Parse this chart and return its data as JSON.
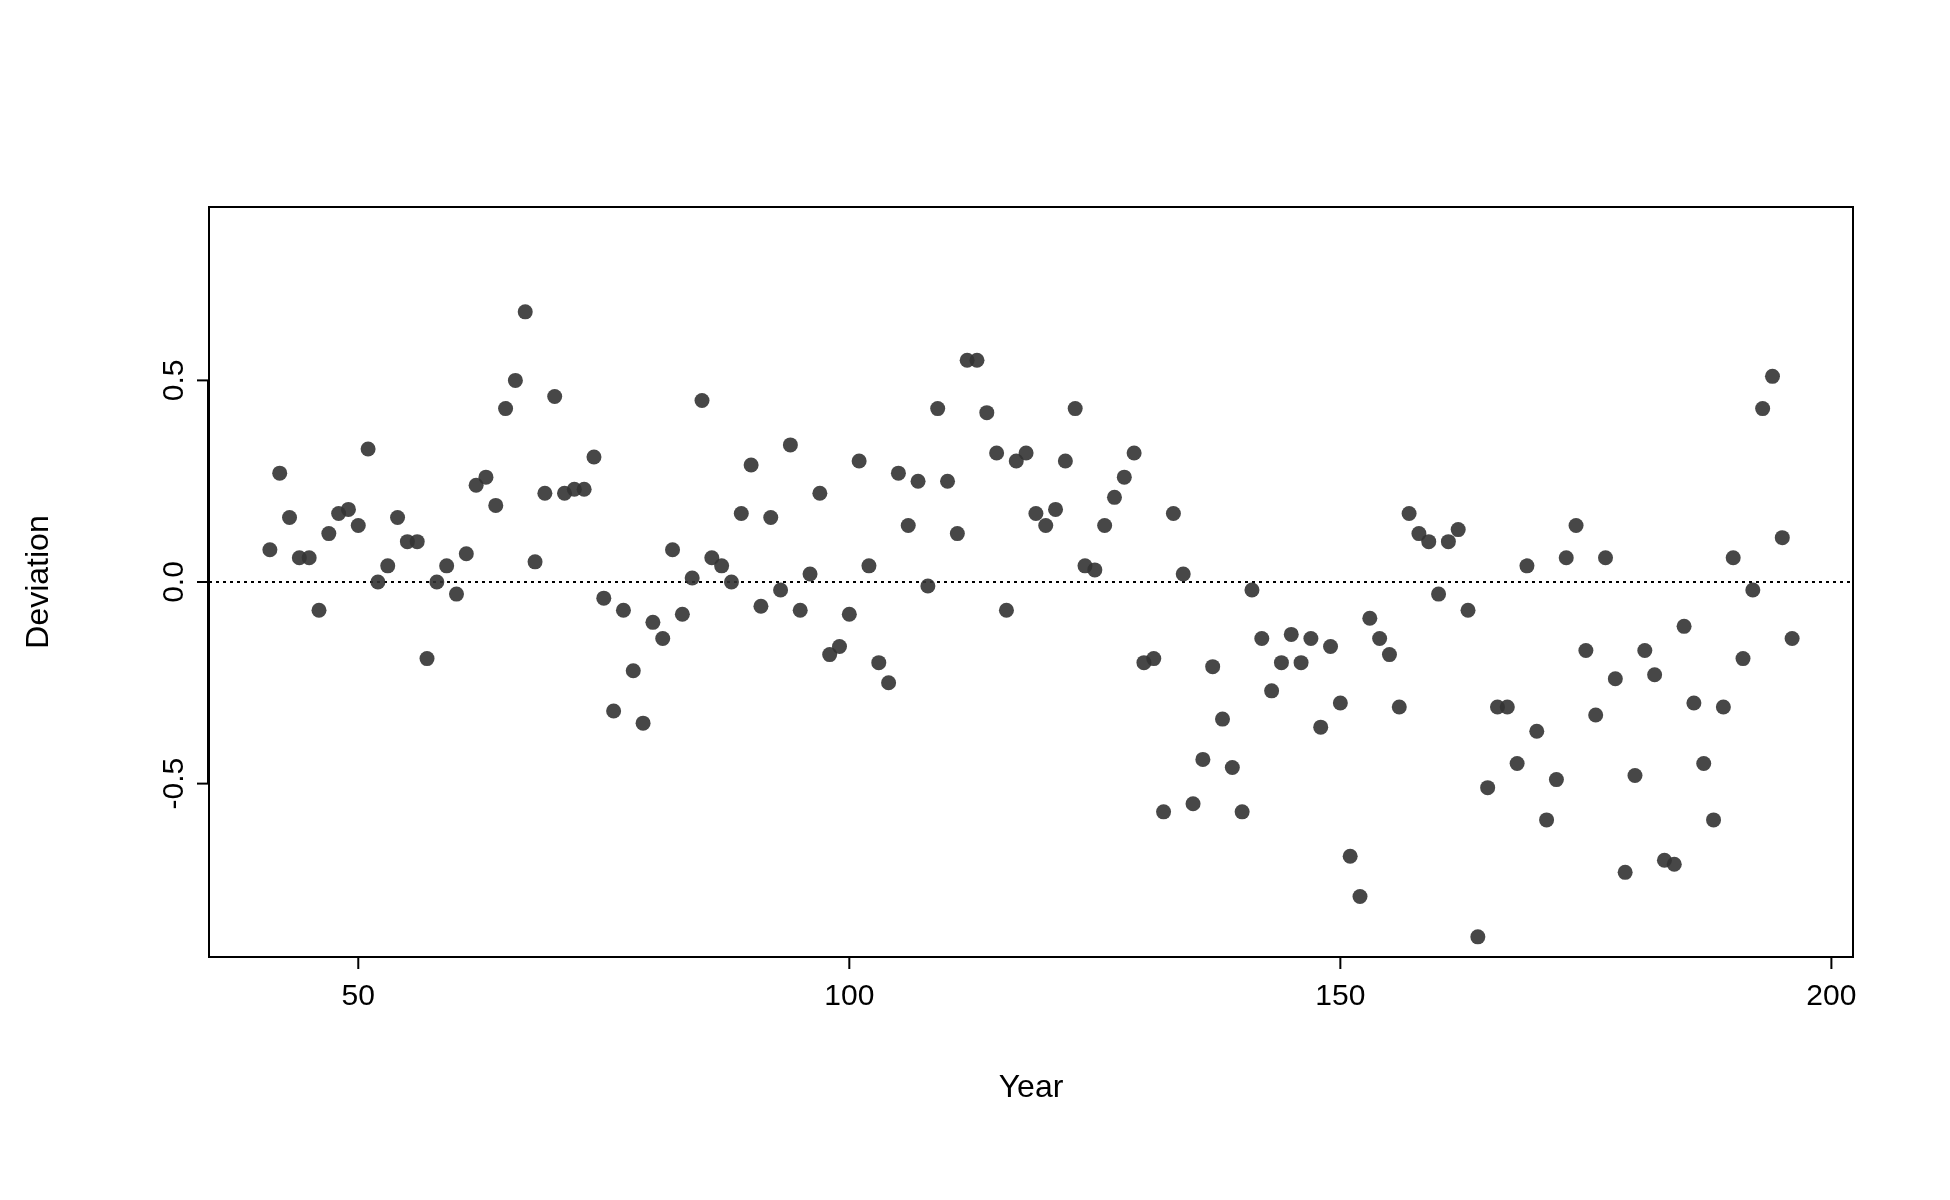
{
  "chart_data": {
    "type": "scatter",
    "xlabel": "Year",
    "ylabel": "Deviation",
    "x": [
      41,
      42,
      43,
      44,
      45,
      46,
      47,
      48,
      49,
      50,
      51,
      52,
      53,
      54,
      55,
      56,
      57,
      58,
      59,
      60,
      61,
      62,
      63,
      64,
      65,
      66,
      67,
      68,
      69,
      70,
      71,
      72,
      73,
      74,
      75,
      76,
      77,
      78,
      79,
      80,
      81,
      82,
      83,
      84,
      85,
      86,
      87,
      88,
      89,
      90,
      91,
      92,
      93,
      94,
      95,
      96,
      97,
      98,
      99,
      100,
      101,
      102,
      103,
      104,
      105,
      106,
      107,
      108,
      109,
      110,
      111,
      112,
      113,
      114,
      115,
      116,
      117,
      118,
      119,
      120,
      121,
      122,
      123,
      124,
      125,
      126,
      127,
      128,
      129,
      130,
      131,
      132,
      133,
      134,
      135,
      136,
      137,
      138,
      139,
      140,
      141,
      142,
      143,
      144,
      145,
      146,
      147,
      148,
      149,
      150,
      151,
      152,
      153,
      154,
      155,
      156,
      157,
      158,
      159,
      160,
      161,
      162,
      163,
      164,
      165,
      166,
      167,
      168,
      169,
      170,
      171,
      172,
      173,
      174,
      175,
      176,
      177,
      178,
      179,
      180,
      181,
      182,
      183,
      184,
      185,
      186,
      187,
      188,
      189,
      190,
      191,
      192,
      193,
      194,
      195,
      196
    ],
    "series": [
      {
        "color": "#333333",
        "values": [
          0.08,
          0.27,
          0.16,
          0.06,
          0.06,
          -0.07,
          0.12,
          0.17,
          0.18,
          0.14,
          0.33,
          0.0,
          0.04,
          0.16,
          0.1,
          0.1,
          -0.19,
          0.0,
          0.04,
          -0.03,
          0.07,
          0.24,
          0.26,
          0.19,
          0.43,
          0.5,
          0.67,
          0.05,
          0.22,
          0.46,
          0.22,
          0.23,
          0.23,
          0.31,
          -0.04,
          -0.32,
          -0.07,
          -0.22,
          -0.35,
          -0.1,
          -0.14,
          0.08,
          -0.08,
          0.01,
          0.45,
          0.06,
          0.04,
          0.0,
          0.17,
          0.29,
          -0.06,
          0.16,
          -0.02,
          0.34,
          -0.07,
          0.02,
          0.22,
          -0.18,
          -0.16,
          -0.08,
          0.3,
          0.04,
          -0.2,
          -0.25,
          0.27,
          0.14,
          0.25,
          -0.01,
          0.43,
          0.25,
          0.12,
          0.55,
          0.55,
          0.42,
          0.32,
          -0.07,
          0.3,
          0.32,
          0.17,
          0.14,
          0.18,
          0.3,
          0.43,
          0.04,
          0.03,
          0.14,
          0.21,
          0.26,
          0.32,
          -0.2,
          -0.19,
          -0.57,
          0.17,
          0.02,
          -0.55,
          -0.44,
          -0.21,
          -0.34,
          -0.46,
          -0.57,
          -0.02,
          -0.14,
          -0.27,
          -0.2,
          -0.13,
          -0.2,
          -0.14,
          -0.36,
          -0.16,
          -0.3,
          -0.68,
          -0.78,
          -0.09,
          -0.14,
          -0.18,
          -0.31,
          0.17,
          0.12,
          0.1,
          -0.03,
          0.1,
          0.13,
          -0.07,
          -0.88,
          -0.51,
          -0.31,
          -0.31,
          -0.45,
          0.04,
          -0.37,
          -0.59,
          -0.49,
          0.06,
          0.14,
          -0.17,
          -0.33,
          0.06,
          -0.24,
          -0.72,
          -0.48,
          -0.17,
          -0.23,
          -0.69,
          -0.7,
          -0.11,
          -0.3,
          -0.45,
          -0.59,
          -0.31,
          0.06,
          -0.19,
          -0.02,
          0.43,
          0.51,
          0.11,
          -0.14
        ]
      }
    ],
    "xlim": [
      34.8,
      202.2
    ],
    "ylim": [
      -0.93,
      0.93
    ],
    "xticks": [
      50,
      100,
      150,
      200
    ],
    "yticks": [
      -0.5,
      {
        "value": 0,
        "label": "0.0"
      },
      0.5
    ],
    "ref_lines": [
      {
        "axis": "y",
        "value": 0,
        "line_style": "dotted",
        "color": "#000000"
      }
    ],
    "marker": "circle",
    "grid": false
  }
}
